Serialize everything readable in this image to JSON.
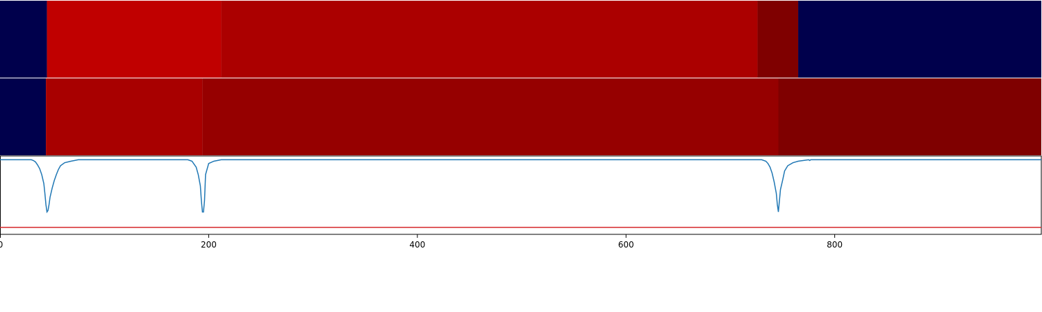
{
  "chart_data": {
    "type": "heatmap",
    "title": "",
    "xlabel": "",
    "ylabel": "",
    "xlim": [
      0,
      998
    ],
    "x_ticks": [
      0,
      200,
      400,
      600,
      800
    ],
    "x_tick_labels": [
      "0",
      "200",
      "400",
      "600",
      "800"
    ],
    "grid": false,
    "legend": "none",
    "tracks": [
      {
        "segments": [
          {
            "start": 0,
            "end": 45,
            "color": "#00004c"
          },
          {
            "start": 45,
            "end": 212,
            "color": "#c00000"
          },
          {
            "start": 212,
            "end": 726,
            "color": "#ab0000"
          },
          {
            "start": 726,
            "end": 765,
            "color": "#7f0000"
          },
          {
            "start": 765,
            "end": 998,
            "color": "#00004c"
          }
        ]
      },
      {
        "segments": [
          {
            "start": 0,
            "end": 44,
            "color": "#00004c"
          },
          {
            "start": 44,
            "end": 194,
            "color": "#a80000"
          },
          {
            "start": 194,
            "end": 746,
            "color": "#960000"
          },
          {
            "start": 746,
            "end": 998,
            "color": "#7f0000"
          }
        ]
      }
    ],
    "line_plot": {
      "ylim": [
        -1.0,
        0.05
      ],
      "series": [
        {
          "color": "#1f77b4",
          "x": [
            0,
            30,
            32,
            34,
            36,
            38,
            40,
            42,
            43,
            44,
            45,
            46,
            47,
            48,
            50,
            52,
            54,
            56,
            58,
            62,
            68,
            75,
            180,
            184,
            186,
            188,
            190,
            192,
            193,
            194,
            195,
            196,
            197,
            200,
            205,
            212,
            730,
            734,
            736,
            738,
            740,
            742,
            744,
            745,
            746,
            747,
            748,
            750,
            752,
            755,
            760,
            765,
            775,
            776,
            777,
            790,
            900,
            998
          ],
          "y": [
            0.0,
            0.0,
            -0.01,
            -0.03,
            -0.07,
            -0.12,
            -0.2,
            -0.32,
            -0.45,
            -0.6,
            -0.7,
            -0.68,
            -0.6,
            -0.5,
            -0.38,
            -0.28,
            -0.2,
            -0.13,
            -0.08,
            -0.04,
            -0.02,
            0.0,
            0.0,
            -0.02,
            -0.06,
            -0.1,
            -0.2,
            -0.35,
            -0.55,
            -0.7,
            -0.7,
            -0.55,
            -0.2,
            -0.05,
            -0.02,
            0.0,
            0.0,
            -0.02,
            -0.05,
            -0.1,
            -0.18,
            -0.3,
            -0.45,
            -0.6,
            -0.7,
            -0.55,
            -0.4,
            -0.28,
            -0.15,
            -0.08,
            -0.04,
            -0.02,
            0.0,
            -0.01,
            0.0,
            0.0,
            0.0,
            0.0
          ]
        }
      ],
      "hline": {
        "y": -1.0,
        "color": "#d62728"
      }
    }
  }
}
